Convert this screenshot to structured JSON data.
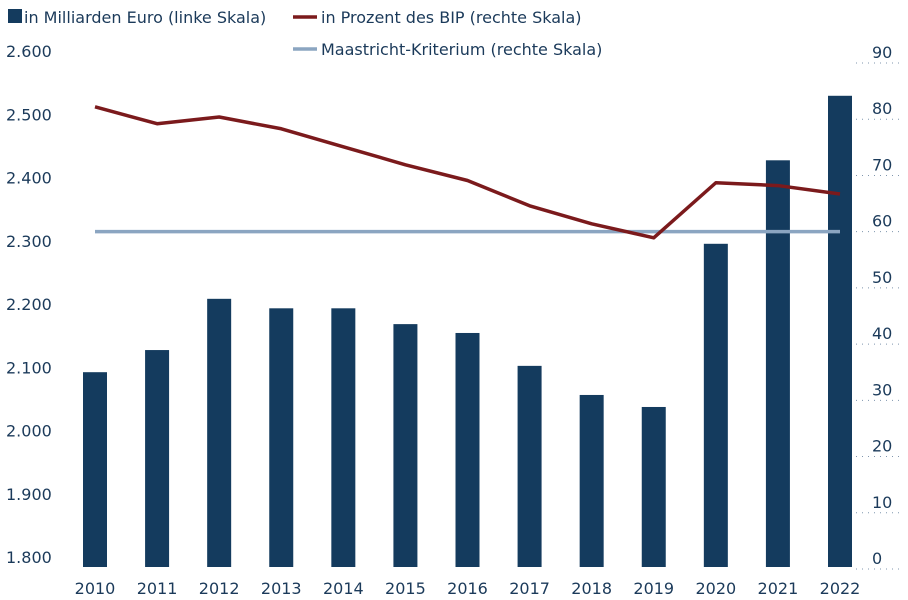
{
  "chart_data": {
    "type": "bar",
    "categories": [
      "2010",
      "2011",
      "2012",
      "2013",
      "2014",
      "2015",
      "2016",
      "2017",
      "2018",
      "2019",
      "2020",
      "2021",
      "2022"
    ],
    "series": [
      {
        "name": "in Milliarden Euro (linke Skala)",
        "type": "bar",
        "color": "#143b5e",
        "values": [
          2108,
          2143,
          2224,
          2209,
          2209,
          2184,
          2170,
          2118,
          2072,
          2053,
          2311,
          2443,
          2545
        ]
      },
      {
        "name": "in Prozent des BIP (rechte Skala)",
        "type": "line",
        "axis": "y2",
        "color": "#7b1a1c",
        "values": [
          82.2,
          79.2,
          80.4,
          78.3,
          75.1,
          71.9,
          69.1,
          64.6,
          61.4,
          58.9,
          68.7,
          68.2,
          66.7
        ]
      },
      {
        "name": "Maastricht-Kriterium (rechte Skala)",
        "type": "line",
        "axis": "y2",
        "color": "#8ba5c1",
        "values": [
          60,
          60,
          60,
          60,
          60,
          60,
          60,
          60,
          60,
          60,
          60,
          60,
          60
        ]
      }
    ],
    "ylim": [
      1800,
      2600
    ],
    "yticks": [
      {
        "value": 1800,
        "label": "1.800"
      },
      {
        "value": 1900,
        "label": "1.900"
      },
      {
        "value": 2000,
        "label": "2.000"
      },
      {
        "value": 2100,
        "label": "2.100"
      },
      {
        "value": 2200,
        "label": "2.200"
      },
      {
        "value": 2300,
        "label": "2.300"
      },
      {
        "value": 2400,
        "label": "2.400"
      },
      {
        "value": 2500,
        "label": "2.500"
      },
      {
        "value": 2600,
        "label": "2.600"
      }
    ],
    "y2lim": [
      0,
      90
    ],
    "y2ticks": [
      0,
      10,
      20,
      30,
      40,
      50,
      60,
      70,
      80,
      90
    ]
  }
}
